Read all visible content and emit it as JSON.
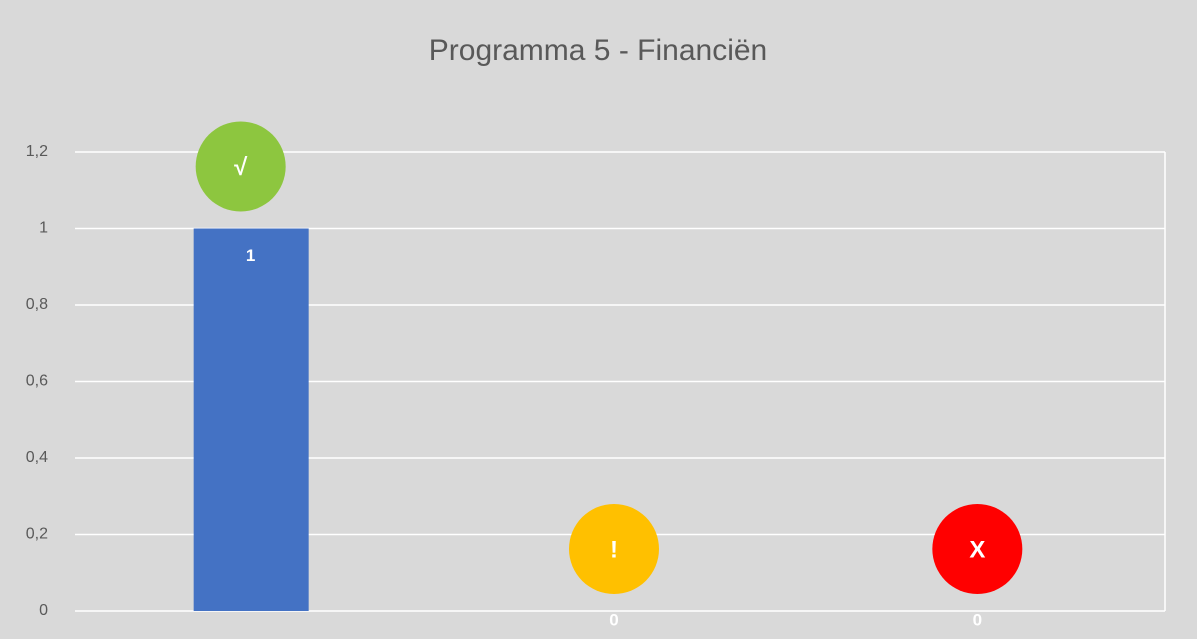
{
  "chart_data": {
    "type": "bar",
    "title": "Programma 5  - Financiën",
    "categories": [
      null,
      null,
      null
    ],
    "values": [
      1,
      0,
      0
    ],
    "color": "#4472c4",
    "ylim": [
      0,
      1.2
    ],
    "yticks": [
      0,
      {
        "value": 0.2,
        "label": "0,2"
      },
      {
        "value": 0.4,
        "label": "0,4"
      },
      {
        "value": 0.6,
        "label": "0,6"
      },
      {
        "value": 0.8,
        "label": "0,8"
      },
      1,
      {
        "value": 1.2,
        "label": "1,2"
      }
    ],
    "grid": true,
    "annotations": [
      {
        "text": "√",
        "color": "#8dc63f"
      },
      {
        "text": "!",
        "color": "#ffc000"
      },
      {
        "text": "X",
        "color": "#ff0000"
      }
    ]
  }
}
